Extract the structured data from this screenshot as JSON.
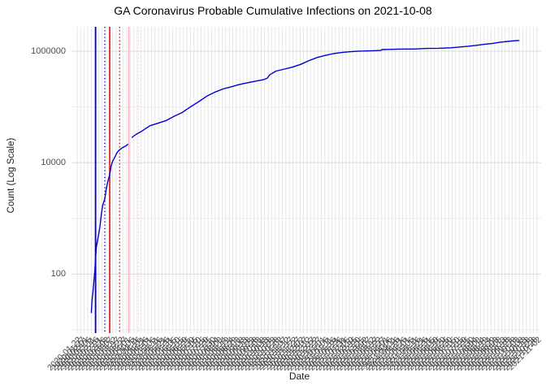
{
  "chart_data": {
    "type": "line",
    "title": "GA Coronavirus Probable Cumulative Infections on 2021-10-08",
    "xlabel": "Date",
    "ylabel": "Count (Log Scale)",
    "y_scale": "log10",
    "y_tick_labels": [
      "100",
      "10000",
      "1000000"
    ],
    "y_ticks": [
      100,
      10000,
      1000000
    ],
    "y_minor_ticks": [
      10,
      1000,
      100000
    ],
    "grid": "on",
    "legend": "none",
    "line_color": "#0000D0",
    "x_tick_labels": [
      "2020-01-22",
      "2020-01-27",
      "2020-02-01",
      "2020-02-06",
      "2020-02-11",
      "2020-02-16",
      "2020-02-21",
      "2020-02-26",
      "2020-03-02",
      "2020-03-07",
      "2020-03-12",
      "2020-03-17",
      "2020-03-22",
      "2020-03-27",
      "2020-04-01",
      "2020-04-06",
      "2020-04-11",
      "2020-04-16",
      "2020-04-21",
      "2020-04-26",
      "2020-05-01",
      "2020-05-06",
      "2020-05-11",
      "2020-05-16",
      "2020-05-21",
      "2020-05-26",
      "2020-05-31",
      "2020-06-05",
      "2020-06-10",
      "2020-06-15",
      "2020-06-20",
      "2020-06-25",
      "2020-06-30",
      "2020-07-05",
      "2020-07-10",
      "2020-07-15",
      "2020-07-20",
      "2020-07-25",
      "2020-07-30",
      "2020-08-04",
      "2020-08-09",
      "2020-08-14",
      "2020-08-19",
      "2020-08-24",
      "2020-08-29",
      "2020-09-03",
      "2020-09-08",
      "2020-09-13",
      "2020-09-18",
      "2020-09-23",
      "2020-09-28",
      "2020-10-03",
      "2020-10-08",
      "2020-10-13",
      "2020-10-18",
      "2020-10-23",
      "2020-10-28",
      "2020-11-02",
      "2020-11-07",
      "2020-11-12",
      "2020-11-17",
      "2020-11-22",
      "2020-11-27",
      "2020-12-02",
      "2020-12-07",
      "2020-12-12",
      "2020-12-17",
      "2020-12-22",
      "2020-12-27",
      "2021-01-01",
      "2021-01-06",
      "2021-01-11",
      "2021-01-16",
      "2021-01-21",
      "2021-01-26",
      "2021-01-31",
      "2021-02-05",
      "2021-02-10",
      "2021-02-15",
      "2021-02-20",
      "2021-02-25",
      "2021-03-02",
      "2021-03-07",
      "2021-03-12",
      "2021-03-17",
      "2021-03-22",
      "2021-03-27",
      "2021-04-01",
      "2021-04-06",
      "2021-04-11",
      "2021-04-16",
      "2021-04-21",
      "2021-04-26",
      "2021-05-01",
      "2021-05-06",
      "2021-05-11",
      "2021-05-16",
      "2021-05-21",
      "2021-05-26",
      "2021-05-31",
      "2021-06-05",
      "2021-06-10",
      "2021-06-15",
      "2021-06-20",
      "2021-06-25",
      "2021-06-30",
      "2021-07-05",
      "2021-07-10",
      "2021-07-15",
      "2021-07-20",
      "2021-07-25",
      "2021-07-30",
      "2021-08-04",
      "2021-08-09",
      "2021-08-14",
      "2021-08-19",
      "2021-08-24",
      "2021-08-29",
      "2021-09-03",
      "2021-09-08",
      "2021-09-13",
      "2021-09-18",
      "2021-09-23",
      "2021-09-28",
      "2021-10-03",
      "2021-10-08",
      "2021-10-13",
      "2021-10-18",
      "2021-10-23",
      "2021-10-28",
      "2021-11-02"
    ],
    "reference_vlines": [
      {
        "date": "2020-02-17",
        "color": "#0000D0",
        "style": "solid",
        "width": 1.8
      },
      {
        "date": "2020-03-01",
        "color": "#0000D0",
        "style": "dotted",
        "width": 1.4
      },
      {
        "date": "2020-03-08",
        "color": "#E10000",
        "style": "solid",
        "width": 1.5
      },
      {
        "date": "2020-03-22",
        "color": "#E10000",
        "style": "dotted",
        "width": 1.4
      },
      {
        "date": "2020-04-04",
        "color": "#FFB0C0",
        "style": "solid",
        "width": 1.5
      },
      {
        "date": "2020-04-18",
        "color": "#FFC8D4",
        "style": "dotted",
        "width": 1.4
      }
    ],
    "series": [
      {
        "name": "probable_cumulative_infections",
        "points": [
          [
            "2020-02-11",
            20
          ],
          [
            "2020-02-12",
            34
          ],
          [
            "2020-02-13",
            45
          ],
          [
            "2020-02-14",
            60
          ],
          [
            "2020-02-16",
            120
          ],
          [
            "2020-02-18",
            300
          ],
          [
            "2020-02-21",
            490
          ],
          [
            "2020-02-23",
            690
          ],
          [
            "2020-02-25",
            1150
          ],
          [
            "2020-02-27",
            1700
          ],
          [
            "2020-03-01",
            2250
          ],
          [
            "2020-03-03",
            3300
          ],
          [
            "2020-03-05",
            4400
          ],
          [
            "2020-03-08",
            6200
          ],
          [
            "2020-03-10",
            8700
          ],
          [
            "2020-03-12",
            10500
          ],
          [
            "2020-03-14",
            11800
          ],
          [
            "2020-03-17",
            14000
          ],
          [
            "2020-03-19",
            15500
          ],
          [
            "2020-03-21",
            16600
          ],
          [
            "2020-03-26",
            18600
          ],
          [
            "2020-03-31",
            20000
          ],
          [
            "2020-04-03",
            21500
          ],
          null,
          [
            "2020-04-08",
            28000
          ],
          [
            "2020-04-14",
            32000
          ],
          [
            "2020-04-22",
            36500
          ],
          [
            "2020-05-04",
            46000
          ],
          [
            "2020-05-15",
            51000
          ],
          [
            "2020-05-27",
            57000
          ],
          [
            "2020-06-07",
            68000
          ],
          [
            "2020-06-19",
            80000
          ],
          [
            "2020-06-30",
            100000
          ],
          [
            "2020-07-12",
            125000
          ],
          [
            "2020-07-23",
            156000
          ],
          [
            "2020-08-04",
            185000
          ],
          [
            "2020-08-15",
            210000
          ],
          [
            "2020-08-27",
            230000
          ],
          [
            "2020-09-07",
            252000
          ],
          [
            "2020-09-19",
            272000
          ],
          [
            "2020-09-30",
            290000
          ],
          [
            "2020-10-12",
            310000
          ],
          [
            "2020-10-17",
            330000
          ],
          [
            "2020-10-20",
            375000
          ],
          [
            "2020-10-29",
            440000
          ],
          [
            "2020-11-10",
            478000
          ],
          [
            "2020-11-21",
            517000
          ],
          [
            "2020-12-03",
            580000
          ],
          [
            "2020-12-14",
            670000
          ],
          [
            "2020-12-26",
            770000
          ],
          [
            "2021-01-06",
            836000
          ],
          [
            "2021-01-18",
            905000
          ],
          [
            "2021-01-29",
            945000
          ],
          [
            "2021-02-10",
            978000
          ],
          [
            "2021-02-21",
            995000
          ],
          [
            "2021-03-05",
            1010000
          ],
          [
            "2021-03-16",
            1020000
          ],
          [
            "2021-03-26",
            1030000
          ],
          [
            "2021-03-28",
            1070000
          ],
          [
            "2021-04-08",
            1075000
          ],
          [
            "2021-04-20",
            1090000
          ],
          [
            "2021-05-13",
            1095000
          ],
          [
            "2021-05-30",
            1120000
          ],
          [
            "2021-06-16",
            1130000
          ],
          [
            "2021-07-03",
            1150000
          ],
          [
            "2021-07-15",
            1185000
          ],
          [
            "2021-07-26",
            1220000
          ],
          [
            "2021-08-07",
            1270000
          ],
          [
            "2021-08-18",
            1320000
          ],
          [
            "2021-08-30",
            1370000
          ],
          [
            "2021-09-10",
            1440000
          ],
          [
            "2021-09-22",
            1500000
          ],
          [
            "2021-09-29",
            1530000
          ],
          [
            "2021-10-08",
            1560000
          ]
        ]
      }
    ],
    "colors": {
      "line": "#0000D0",
      "grid_major_h": "#DBDBDB",
      "grid_minor_h": "#ECECEC",
      "grid_vertical": "#E6E6E6",
      "axis_text": "#4d4d4d",
      "background": "#ffffff"
    }
  }
}
